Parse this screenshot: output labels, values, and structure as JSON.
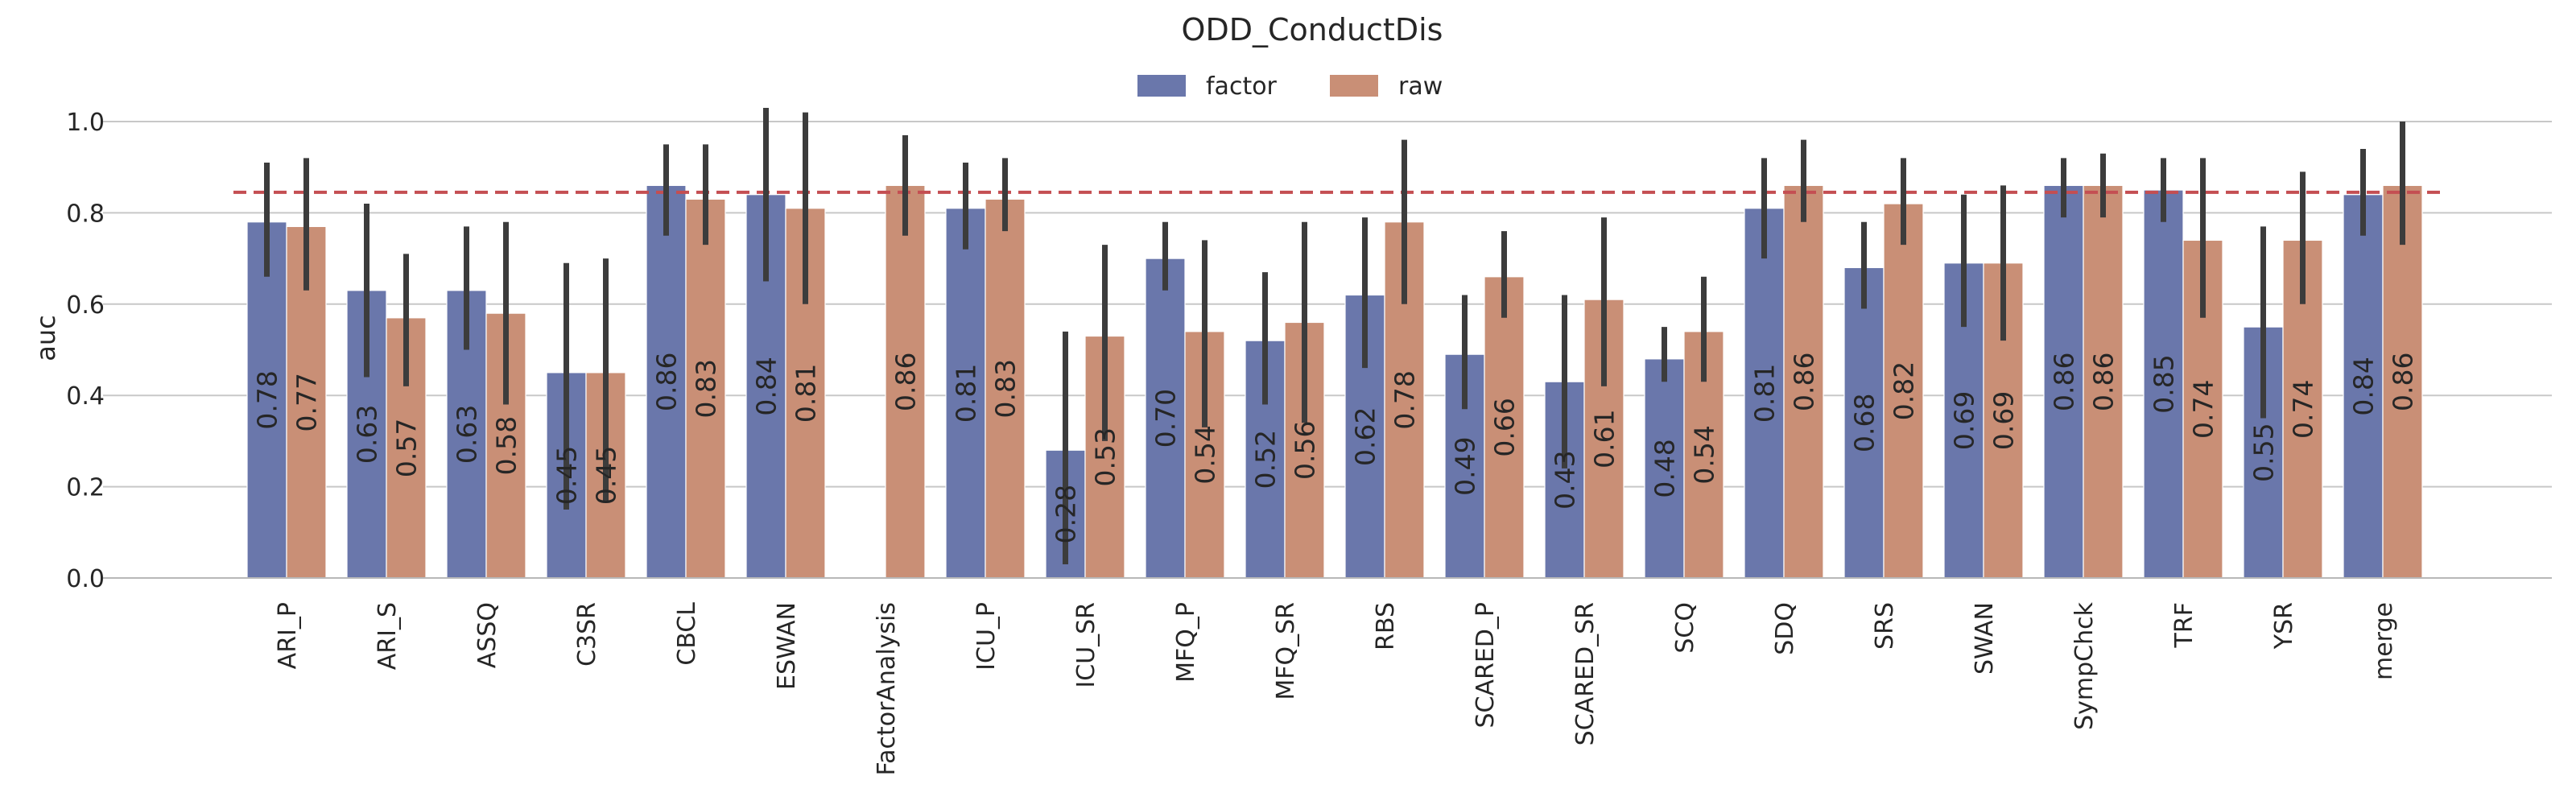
{
  "chart_data": {
    "type": "bar",
    "title": "ODD_ConductDis",
    "xlabel": "",
    "ylabel": "auc",
    "ylim": [
      0,
      1.05
    ],
    "yticks": [
      "0.0",
      "0.2",
      "0.4",
      "0.6",
      "0.8",
      "1.0"
    ],
    "grid": true,
    "legend_position": "top-center",
    "reference_line": {
      "y": 0.845,
      "color": "#c44e52",
      "style": "dashed"
    },
    "categories": [
      "ARI_P",
      "ARI_S",
      "ASSQ",
      "C3SR",
      "CBCL",
      "ESWAN",
      "FactorAnalysis",
      "ICU_P",
      "ICU_SR",
      "MFQ_P",
      "MFQ_SR",
      "RBS",
      "SCARED_P",
      "SCARED_SR",
      "SCQ",
      "SDQ",
      "SRS",
      "SWAN",
      "SympChck",
      "TRF",
      "YSR",
      "merge"
    ],
    "series": [
      {
        "name": "factor",
        "color": "#6a77ab",
        "values": [
          0.78,
          0.63,
          0.63,
          0.45,
          0.86,
          0.84,
          null,
          0.81,
          0.28,
          0.7,
          0.52,
          0.62,
          0.49,
          0.43,
          0.48,
          0.81,
          0.68,
          0.69,
          0.86,
          0.85,
          0.55,
          0.84
        ],
        "labels": [
          "0.78",
          "0.63",
          "0.63",
          "0.45",
          "0.86",
          "0.84",
          "",
          "0.81",
          "0.28",
          "0.70",
          "0.52",
          "0.62",
          "0.49",
          "0.43",
          "0.48",
          "0.81",
          "0.68",
          "0.69",
          "0.86",
          "0.85",
          "0.55",
          "0.84"
        ],
        "err_low": [
          0.66,
          0.44,
          0.5,
          0.15,
          0.75,
          0.65,
          null,
          0.72,
          0.03,
          0.63,
          0.38,
          0.46,
          0.37,
          0.24,
          0.43,
          0.7,
          0.59,
          0.55,
          0.79,
          0.78,
          0.35,
          0.75
        ],
        "err_high": [
          0.91,
          0.82,
          0.77,
          0.69,
          0.95,
          1.03,
          null,
          0.91,
          0.54,
          0.78,
          0.67,
          0.79,
          0.62,
          0.62,
          0.55,
          0.92,
          0.78,
          0.84,
          0.92,
          0.92,
          0.77,
          0.94
        ]
      },
      {
        "name": "raw",
        "color": "#c98f76",
        "values": [
          0.77,
          0.57,
          0.58,
          0.45,
          0.83,
          0.81,
          0.86,
          0.83,
          0.53,
          0.54,
          0.56,
          0.78,
          0.66,
          0.61,
          0.54,
          0.86,
          0.82,
          0.69,
          0.86,
          0.74,
          0.74,
          0.86
        ],
        "labels": [
          "0.77",
          "0.57",
          "0.58",
          "0.45",
          "0.83",
          "0.81",
          "0.86",
          "0.83",
          "0.53",
          "0.54",
          "0.56",
          "0.78",
          "0.66",
          "0.61",
          "0.54",
          "0.86",
          "0.82",
          "0.69",
          "0.86",
          "0.74",
          "0.74",
          "0.86"
        ],
        "err_low": [
          0.63,
          0.42,
          0.38,
          0.17,
          0.73,
          0.6,
          0.75,
          0.76,
          0.3,
          0.33,
          0.34,
          0.6,
          0.57,
          0.42,
          0.43,
          0.78,
          0.73,
          0.52,
          0.79,
          0.57,
          0.6,
          0.73
        ],
        "err_high": [
          0.92,
          0.71,
          0.78,
          0.7,
          0.95,
          1.02,
          0.97,
          0.92,
          0.73,
          0.74,
          0.78,
          0.96,
          0.76,
          0.79,
          0.66,
          0.96,
          0.92,
          0.86,
          0.93,
          0.92,
          0.89,
          1.0
        ]
      }
    ]
  }
}
